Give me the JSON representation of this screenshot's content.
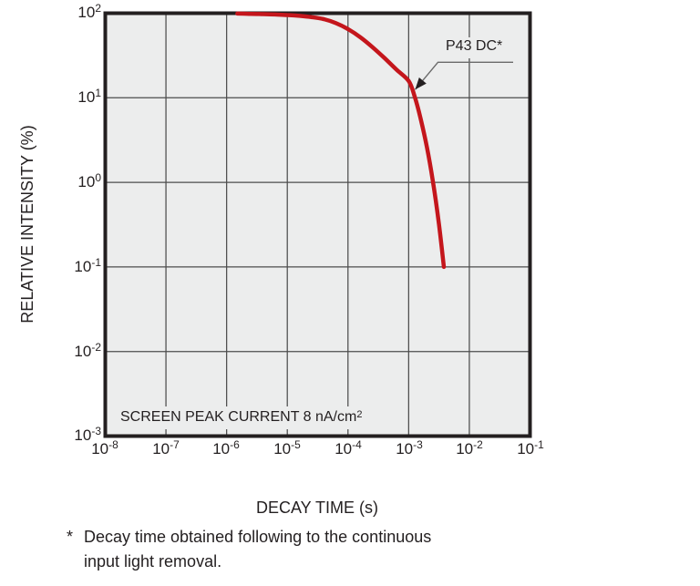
{
  "page": {
    "background": "#ffffff"
  },
  "chart": {
    "style": {
      "plot_bg": "#eceded",
      "border_color": "#231f20",
      "grid_color": "#4d4d4d",
      "curve_color": "#c4161c",
      "leader_color": "#6a6a6a",
      "text_color": "#231f20"
    },
    "y_axis": {
      "title": "RELATIVE INTENSITY (%)",
      "ticks": [
        {
          "base": "10",
          "exp": "2"
        },
        {
          "base": "10",
          "exp": "1"
        },
        {
          "base": "10",
          "exp": "0"
        },
        {
          "base": "10",
          "exp": "-1"
        },
        {
          "base": "10",
          "exp": "-2"
        },
        {
          "base": "10",
          "exp": "-3"
        }
      ]
    },
    "x_axis": {
      "title": "DECAY TIME (s)",
      "ticks": [
        {
          "base": "10",
          "exp": "-8"
        },
        {
          "base": "10",
          "exp": "-7"
        },
        {
          "base": "10",
          "exp": "-6"
        },
        {
          "base": "10",
          "exp": "-5"
        },
        {
          "base": "10",
          "exp": "-4"
        },
        {
          "base": "10",
          "exp": "-3"
        },
        {
          "base": "10",
          "exp": "-2"
        },
        {
          "base": "10",
          "exp": "-1"
        }
      ]
    },
    "annotation_label": "P43 DC*",
    "inside_note": {
      "text": "SCREEN PEAK CURRENT 8 nA/cm",
      "sup": "2"
    }
  },
  "footnote": {
    "marker": "*",
    "line1": "Decay time obtained following to the continuous",
    "line2": "input light removal."
  },
  "chart_data": {
    "type": "line",
    "title": "",
    "xlabel": "DECAY TIME (s)",
    "ylabel": "RELATIVE INTENSITY (%)",
    "x_scale": "log",
    "y_scale": "log",
    "xlim": [
      1e-08,
      0.1
    ],
    "ylim": [
      0.001,
      100.0
    ],
    "x_tick_labels": [
      "10⁻⁸",
      "10⁻⁷",
      "10⁻⁶",
      "10⁻⁵",
      "10⁻⁴",
      "10⁻³",
      "10⁻²",
      "10⁻¹"
    ],
    "y_tick_labels": [
      "10²",
      "10¹",
      "10⁰",
      "10⁻¹",
      "10⁻²",
      "10⁻³"
    ],
    "grid": true,
    "legend": "none",
    "inside_note": "SCREEN PEAK CURRENT 8 nA/cm²",
    "annotation": {
      "label": "P43 DC*",
      "target_point": [
        0.00128,
        12.5
      ]
    },
    "series": [
      {
        "name": "P43 DC*",
        "color": "#c4161c",
        "points": [
          [
            1.5e-06,
            99
          ],
          [
            2.5e-06,
            98.4
          ],
          [
            4e-06,
            97.6
          ],
          [
            6.3e-06,
            96.6
          ],
          [
            1e-05,
            95.2
          ],
          [
            1.6e-05,
            93.0
          ],
          [
            2.5e-05,
            89.8
          ],
          [
            4e-05,
            85.0
          ],
          [
            6.3e-05,
            76.5
          ],
          [
            0.0001,
            65.0
          ],
          [
            0.00016,
            52.0
          ],
          [
            0.00025,
            40.0
          ],
          [
            0.0004,
            29.5
          ],
          [
            0.00063,
            21.5
          ],
          [
            0.001,
            15.8
          ],
          [
            0.00126,
            10.3
          ],
          [
            0.00158,
            5.6
          ],
          [
            0.002,
            2.6
          ],
          [
            0.0025,
            1.05
          ],
          [
            0.00316,
            0.32
          ],
          [
            0.0038,
            0.1
          ]
        ]
      }
    ]
  }
}
